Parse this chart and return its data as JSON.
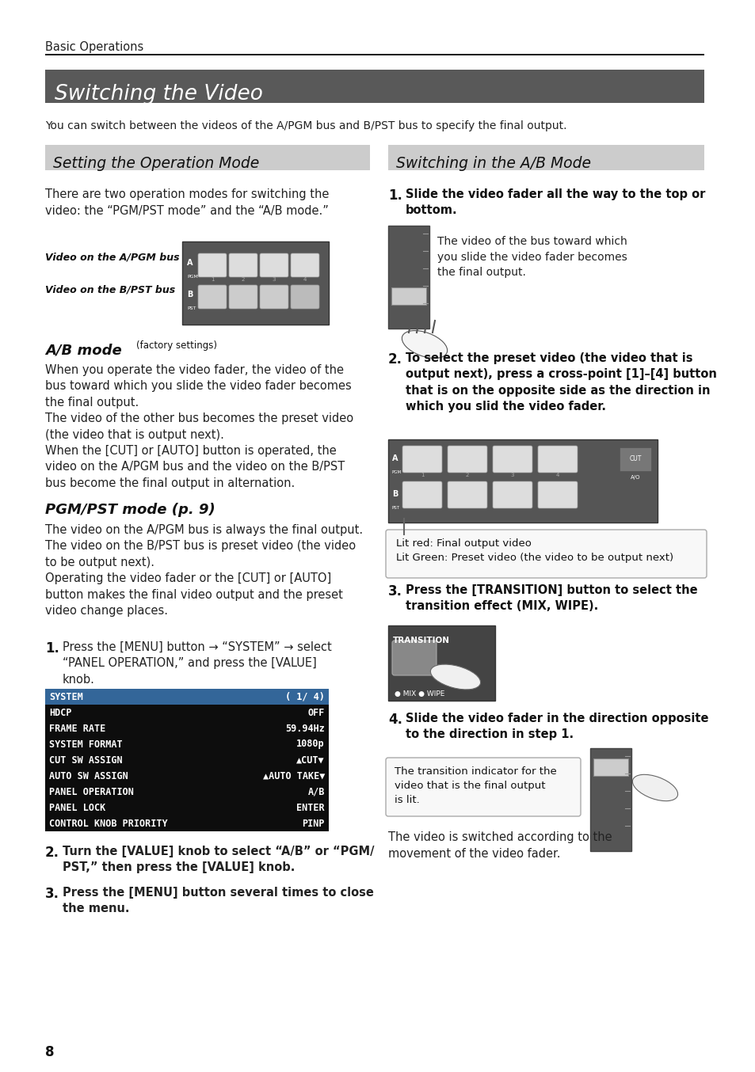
{
  "page_bg": "#ffffff",
  "header_text": "Basic Operations",
  "main_title": "Switching the Video",
  "main_title_bg": "#595959",
  "main_title_color": "#ffffff",
  "subtitle_text": "You can switch between the videos of the A/PGM bus and B/PST bus to specify the final output.",
  "left_section_title": "Setting the Operation Mode",
  "left_section_bg": "#cccccc",
  "right_section_title": "Switching in the A/B Mode",
  "right_section_bg": "#cccccc",
  "page_number": "8",
  "system_menu_rows": [
    [
      "SYSTEM",
      "( 1/ 4)"
    ],
    [
      "HDCP",
      "OFF"
    ],
    [
      "FRAME RATE",
      "59.94Hz"
    ],
    [
      "SYSTEM FORMAT",
      "1080p"
    ],
    [
      "CUT SW ASSIGN",
      "▲CUT▼"
    ],
    [
      "AUTO SW ASSIGN",
      "▲AUTO TAKE▼"
    ],
    [
      "PANEL OPERATION",
      "A/B"
    ],
    [
      "PANEL LOCK",
      "ENTER"
    ],
    [
      "CONTROL KNOB PRIORITY",
      "PINP"
    ]
  ],
  "callout_box_text": "Lit red: Final output video\nLit Green: Preset video (the video to be output next)",
  "transition_callout": "The transition indicator for the\nvideo that is the final output\nis lit.",
  "step4_text": "The video is switched according to the\nmovement of the video fader."
}
